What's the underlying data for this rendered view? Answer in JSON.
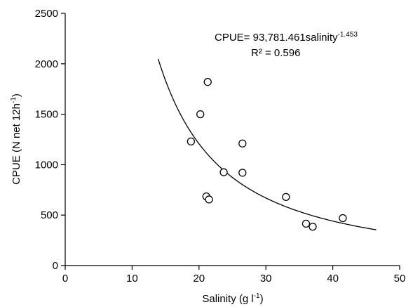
{
  "chart_data": {
    "type": "scatter",
    "title": "",
    "xlabel": {
      "text": "Salinity (g l",
      "sup": "-1",
      "close": ")"
    },
    "ylabel": {
      "text": "CPUE (N net 12h",
      "sup": "-1",
      "close": ")"
    },
    "xlim": [
      0,
      50
    ],
    "ylim": [
      0,
      2500
    ],
    "xticks": [
      0,
      10,
      20,
      30,
      40,
      50
    ],
    "yticks": [
      0,
      500,
      1000,
      1500,
      2000,
      2500
    ],
    "grid": false,
    "points": [
      {
        "x": 18.8,
        "y": 1230
      },
      {
        "x": 20.2,
        "y": 1500
      },
      {
        "x": 21.3,
        "y": 1820
      },
      {
        "x": 21.1,
        "y": 685
      },
      {
        "x": 21.5,
        "y": 655
      },
      {
        "x": 23.7,
        "y": 925
      },
      {
        "x": 26.5,
        "y": 1210
      },
      {
        "x": 26.5,
        "y": 920
      },
      {
        "x": 33.0,
        "y": 680
      },
      {
        "x": 36.0,
        "y": 415
      },
      {
        "x": 37.0,
        "y": 385
      },
      {
        "x": 41.5,
        "y": 470
      }
    ],
    "fit": {
      "model": "power",
      "a": 93781.461,
      "b": -1.453,
      "x_range": [
        13.9,
        46.5
      ]
    },
    "annotation": {
      "equation_main": "CPUE= 93,781.461salinity",
      "equation_sup": "-1.453",
      "r2": "R² = 0.596"
    }
  }
}
